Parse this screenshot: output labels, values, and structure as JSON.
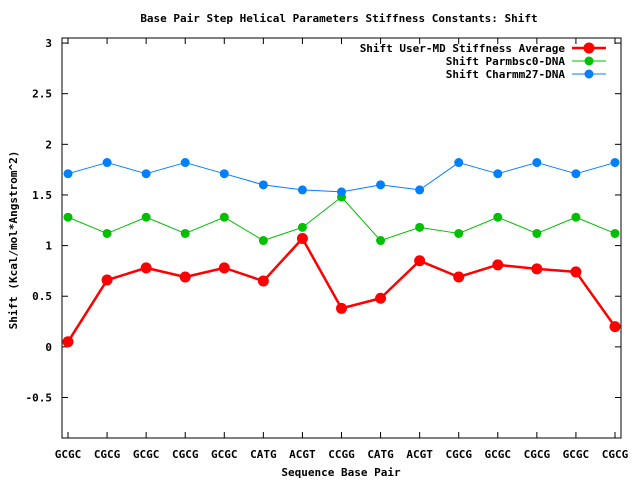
{
  "chart_data": {
    "type": "line",
    "title": "Base Pair Step Helical Parameters Stiffness Constants: Shift",
    "xlabel": "Sequence Base Pair",
    "ylabel": "Shift (Kcal/mol*Angstrom^2)",
    "categories": [
      "GCGC",
      "CGCG",
      "GCGC",
      "CGCG",
      "GCGC",
      "CATG",
      "ACGT",
      "CCGG",
      "CATG",
      "ACGT",
      "CGCG",
      "GCGC",
      "CGCG",
      "GCGC",
      "CGCG"
    ],
    "ylim": [
      -0.9,
      3.05
    ],
    "yticks": [
      {
        "value": 3,
        "label": "3"
      },
      {
        "value": 2.5,
        "label": "2.5"
      },
      {
        "value": 2,
        "label": "2"
      },
      {
        "value": 1.5,
        "label": "1.5"
      },
      {
        "value": 1,
        "label": "1"
      },
      {
        "value": 0.5,
        "label": "0.5"
      },
      {
        "value": 0,
        "label": "0"
      },
      {
        "value": -0.5,
        "label": "-0.5"
      }
    ],
    "grid": false,
    "legend_position": "top-right",
    "series": [
      {
        "name": "Shift User-MD Stiffness Average",
        "color": "#ff0000",
        "line_width": 2.5,
        "marker": "large",
        "values": [
          0.05,
          0.66,
          0.78,
          0.69,
          0.78,
          0.65,
          1.07,
          0.38,
          0.48,
          0.85,
          0.69,
          0.81,
          0.77,
          0.74,
          0.2
        ]
      },
      {
        "name": "Shift Parmbsc0-DNA",
        "color": "#00c000",
        "line_width": 1,
        "marker": "small",
        "values": [
          1.28,
          1.12,
          1.28,
          1.12,
          1.28,
          1.05,
          1.18,
          1.48,
          1.05,
          1.18,
          1.12,
          1.28,
          1.12,
          1.28,
          1.12
        ]
      },
      {
        "name": "Shift Charmm27-DNA",
        "color": "#0080ff",
        "line_width": 1,
        "marker": "small",
        "values": [
          1.71,
          1.82,
          1.71,
          1.82,
          1.71,
          1.6,
          1.55,
          1.53,
          1.6,
          1.55,
          1.82,
          1.71,
          1.82,
          1.71,
          1.82
        ]
      }
    ]
  }
}
